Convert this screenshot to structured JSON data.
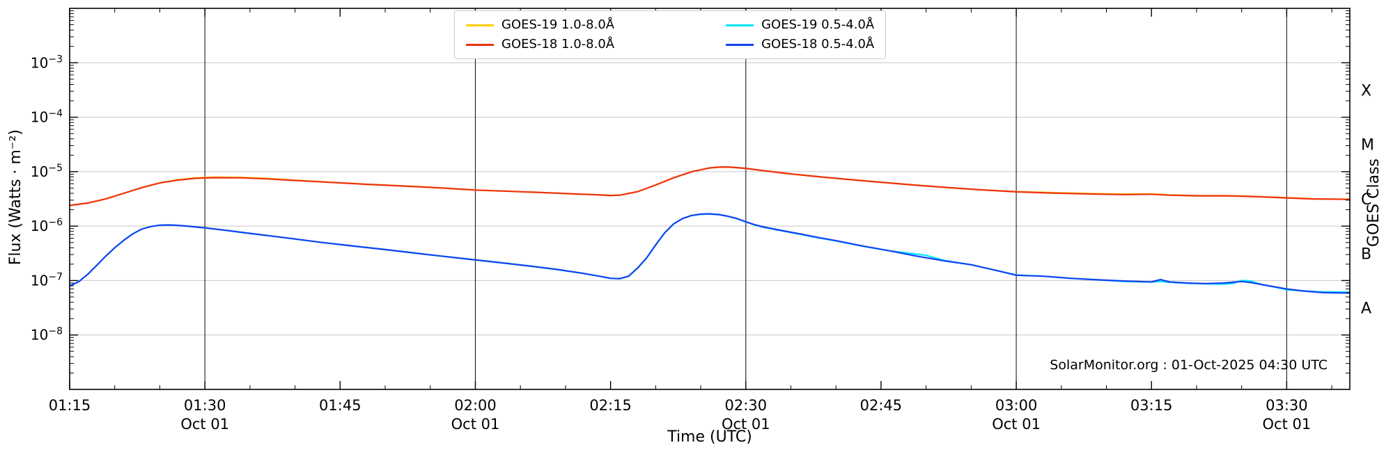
{
  "figure": {
    "background": "#ffffff"
  },
  "annotation": {
    "text": "SolarMonitor.org : 01-Oct-2025 04:30 UTC"
  },
  "axes_titles": {
    "x": "Time (UTC)",
    "y_left": "Flux (Watts · m⁻²)",
    "y_right": "GOES Class"
  },
  "chart_data": {
    "type": "line",
    "title": "",
    "xlabel": "Time (UTC)",
    "ylabel": "Flux (Watts · m⁻²)",
    "ylabel_right": "GOES Class",
    "x_unit": "minutes after 00:00 UTC on 01-Oct-2025",
    "xlim_minutes": [
      75,
      217
    ],
    "ylim": [
      1e-09,
      0.01
    ],
    "grid_color": "#c6c6c6",
    "vline_color": "#1c1c1c",
    "frame_color": "#000000",
    "x_ticks": [
      {
        "t": 75,
        "label": "01:15",
        "date": ""
      },
      {
        "t": 90,
        "label": "01:30",
        "date": "Oct 01"
      },
      {
        "t": 105,
        "label": "01:45",
        "date": ""
      },
      {
        "t": 120,
        "label": "02:00",
        "date": "Oct 01"
      },
      {
        "t": 135,
        "label": "02:15",
        "date": ""
      },
      {
        "t": 150,
        "label": "02:30",
        "date": "Oct 01"
      },
      {
        "t": 165,
        "label": "02:45",
        "date": ""
      },
      {
        "t": 180,
        "label": "03:00",
        "date": "Oct 01"
      },
      {
        "t": 195,
        "label": "03:15",
        "date": ""
      },
      {
        "t": 210,
        "label": "03:30",
        "date": "Oct 01"
      }
    ],
    "x_minor_step_minutes": 5,
    "x_dark_gridline_minutes": [
      90,
      120,
      150,
      180,
      210
    ],
    "y_ticks_exponents": [
      -3,
      -4,
      -5,
      -6,
      -7,
      -8
    ],
    "goes_class_labels": [
      {
        "label": "X",
        "mid_exponent": -3.5
      },
      {
        "label": "M",
        "mid_exponent": -4.5
      },
      {
        "label": "C",
        "mid_exponent": -5.5
      },
      {
        "label": "B",
        "mid_exponent": -6.5
      },
      {
        "label": "A",
        "mid_exponent": -7.5
      }
    ],
    "series": [
      {
        "name": "GOES-19 1.0-8.0Å",
        "color": "#ffce00",
        "points": [
          [
            75,
            2.4e-06
          ],
          [
            77,
            2.65e-06
          ],
          [
            79,
            3.15e-06
          ],
          [
            81,
            4e-06
          ],
          [
            83,
            5.1e-06
          ],
          [
            85,
            6.2e-06
          ],
          [
            87,
            7.1e-06
          ],
          [
            89,
            7.7e-06
          ],
          [
            91,
            7.9e-06
          ],
          [
            94,
            7.85e-06
          ],
          [
            97,
            7.5e-06
          ],
          [
            100,
            6.95e-06
          ],
          [
            104,
            6.38e-06
          ],
          [
            108,
            5.87e-06
          ],
          [
            112,
            5.46e-06
          ],
          [
            116,
            5.06e-06
          ],
          [
            120,
            4.6e-06
          ],
          [
            124,
            4.35e-06
          ],
          [
            128,
            4.1e-06
          ],
          [
            131,
            3.9e-06
          ],
          [
            133,
            3.8e-06
          ],
          [
            135,
            3.65e-06
          ],
          [
            136,
            3.7e-06
          ],
          [
            138,
            4.3e-06
          ],
          [
            140,
            5.7e-06
          ],
          [
            142,
            7.7e-06
          ],
          [
            144,
            1e-05
          ],
          [
            146,
            1.17e-05
          ],
          [
            147,
            1.21e-05
          ],
          [
            148,
            1.22e-05
          ],
          [
            150,
            1.15e-05
          ],
          [
            152,
            1.04e-05
          ],
          [
            155,
            9.1e-06
          ],
          [
            158,
            8.1e-06
          ],
          [
            161,
            7.3e-06
          ],
          [
            164,
            6.6e-06
          ],
          [
            168,
            5.8e-06
          ],
          [
            172,
            5.15e-06
          ],
          [
            176,
            4.65e-06
          ],
          [
            180,
            4.3e-06
          ],
          [
            184,
            4.12e-06
          ],
          [
            188,
            3.97e-06
          ],
          [
            192,
            3.87e-06
          ],
          [
            195,
            3.9e-06
          ],
          [
            197,
            3.75e-06
          ],
          [
            200,
            3.62e-06
          ],
          [
            203,
            3.62e-06
          ],
          [
            205,
            3.57e-06
          ],
          [
            207,
            3.47e-06
          ],
          [
            210,
            3.32e-06
          ],
          [
            213,
            3.17e-06
          ],
          [
            217,
            3.12e-06
          ]
        ]
      },
      {
        "name": "GOES-18 1.0-8.0Å",
        "color": "#ee3211",
        "points": [
          [
            75,
            2.4e-06
          ],
          [
            77,
            2.65e-06
          ],
          [
            79,
            3.15e-06
          ],
          [
            81,
            4e-06
          ],
          [
            83,
            5.1e-06
          ],
          [
            85,
            6.2e-06
          ],
          [
            87,
            7e-06
          ],
          [
            89,
            7.55e-06
          ],
          [
            91,
            7.75e-06
          ],
          [
            94,
            7.7e-06
          ],
          [
            97,
            7.35e-06
          ],
          [
            100,
            6.9e-06
          ],
          [
            104,
            6.35e-06
          ],
          [
            108,
            5.85e-06
          ],
          [
            112,
            5.45e-06
          ],
          [
            116,
            5.05e-06
          ],
          [
            120,
            4.6e-06
          ],
          [
            124,
            4.35e-06
          ],
          [
            128,
            4.1e-06
          ],
          [
            131,
            3.9e-06
          ],
          [
            133,
            3.8e-06
          ],
          [
            135,
            3.65e-06
          ],
          [
            136,
            3.7e-06
          ],
          [
            138,
            4.3e-06
          ],
          [
            140,
            5.7e-06
          ],
          [
            142,
            7.7e-06
          ],
          [
            144,
            1e-05
          ],
          [
            146,
            1.17e-05
          ],
          [
            147,
            1.21e-05
          ],
          [
            148,
            1.22e-05
          ],
          [
            150,
            1.15e-05
          ],
          [
            152,
            1.04e-05
          ],
          [
            155,
            9.1e-06
          ],
          [
            158,
            8.1e-06
          ],
          [
            161,
            7.3e-06
          ],
          [
            164,
            6.6e-06
          ],
          [
            168,
            5.8e-06
          ],
          [
            172,
            5.15e-06
          ],
          [
            176,
            4.65e-06
          ],
          [
            180,
            4.25e-06
          ],
          [
            184,
            4.05e-06
          ],
          [
            188,
            3.9e-06
          ],
          [
            192,
            3.8e-06
          ],
          [
            195,
            3.85e-06
          ],
          [
            197,
            3.7e-06
          ],
          [
            200,
            3.6e-06
          ],
          [
            203,
            3.6e-06
          ],
          [
            205,
            3.55e-06
          ],
          [
            207,
            3.45e-06
          ],
          [
            210,
            3.3e-06
          ],
          [
            213,
            3.15e-06
          ],
          [
            217,
            3.1e-06
          ]
        ]
      },
      {
        "name": "GOES-19 0.5-4.0Å",
        "color": "#00e5ff",
        "points": [
          [
            75,
            8e-08
          ],
          [
            76,
            9.5e-08
          ],
          [
            77,
            1.3e-07
          ],
          [
            78,
            1.9e-07
          ],
          [
            79,
            2.8e-07
          ],
          [
            80,
            4e-07
          ],
          [
            81,
            5.5e-07
          ],
          [
            82,
            7.2e-07
          ],
          [
            83,
            8.8e-07
          ],
          [
            84,
            9.8e-07
          ],
          [
            85,
            1.04e-06
          ],
          [
            86,
            1.05e-06
          ],
          [
            87,
            1.03e-06
          ],
          [
            88,
            1e-06
          ],
          [
            90,
            9.3e-07
          ],
          [
            92,
            8.5e-07
          ],
          [
            94,
            7.7e-07
          ],
          [
            97,
            6.7e-07
          ],
          [
            100,
            5.8e-07
          ],
          [
            103,
            5e-07
          ],
          [
            106,
            4.4e-07
          ],
          [
            110,
            3.7e-07
          ],
          [
            114,
            3.1e-07
          ],
          [
            118,
            2.6e-07
          ],
          [
            122,
            2.2e-07
          ],
          [
            126,
            1.85e-07
          ],
          [
            129,
            1.6e-07
          ],
          [
            132,
            1.35e-07
          ],
          [
            134,
            1.18e-07
          ],
          [
            135,
            1.1e-07
          ],
          [
            136,
            1.08e-07
          ],
          [
            137,
            1.2e-07
          ],
          [
            138,
            1.7e-07
          ],
          [
            139,
            2.6e-07
          ],
          [
            140,
            4.5e-07
          ],
          [
            141,
            7.5e-07
          ],
          [
            142,
            1.1e-06
          ],
          [
            143,
            1.38e-06
          ],
          [
            144,
            1.57e-06
          ],
          [
            145,
            1.65e-06
          ],
          [
            146,
            1.66e-06
          ],
          [
            147,
            1.62e-06
          ],
          [
            148,
            1.51e-06
          ],
          [
            149,
            1.37e-06
          ],
          [
            150,
            1.19e-06
          ],
          [
            151,
            1.05e-06
          ],
          [
            152,
            9.5e-07
          ],
          [
            154,
            8.2e-07
          ],
          [
            156,
            7.1e-07
          ],
          [
            158,
            6.1e-07
          ],
          [
            160,
            5.35e-07
          ],
          [
            163,
            4.25e-07
          ],
          [
            166,
            3.5e-07
          ],
          [
            168,
            3.2e-07
          ],
          [
            169,
            3.05e-07
          ],
          [
            170,
            2.9e-07
          ],
          [
            171,
            2.6e-07
          ],
          [
            172,
            2.35e-07
          ],
          [
            175,
            1.95e-07
          ],
          [
            178,
            1.5e-07
          ],
          [
            180,
            1.27e-07
          ],
          [
            183,
            1.2e-07
          ],
          [
            186,
            1.1e-07
          ],
          [
            189,
            1.03e-07
          ],
          [
            192,
            9.6e-08
          ],
          [
            195,
            9.4e-08
          ],
          [
            196,
            9.6e-08
          ],
          [
            197,
            9.3e-08
          ],
          [
            199,
            8.9e-08
          ],
          [
            201,
            8.7e-08
          ],
          [
            203,
            8.6e-08
          ],
          [
            204,
            8.8e-08
          ],
          [
            205,
            1e-07
          ],
          [
            206,
            9.8e-08
          ],
          [
            207,
            8.6e-08
          ],
          [
            209,
            7.4e-08
          ],
          [
            210,
            6.8e-08
          ],
          [
            212,
            6.4e-08
          ],
          [
            214,
            6.2e-08
          ],
          [
            217,
            6.1e-08
          ]
        ]
      },
      {
        "name": "GOES-18 0.5-4.0Å",
        "color": "#1243f0",
        "points": [
          [
            75,
            8e-08
          ],
          [
            76,
            9.5e-08
          ],
          [
            77,
            1.3e-07
          ],
          [
            78,
            1.9e-07
          ],
          [
            79,
            2.8e-07
          ],
          [
            80,
            4e-07
          ],
          [
            81,
            5.5e-07
          ],
          [
            82,
            7.2e-07
          ],
          [
            83,
            8.8e-07
          ],
          [
            84,
            9.8e-07
          ],
          [
            85,
            1.04e-06
          ],
          [
            86,
            1.05e-06
          ],
          [
            87,
            1.03e-06
          ],
          [
            88,
            1e-06
          ],
          [
            90,
            9.3e-07
          ],
          [
            92,
            8.5e-07
          ],
          [
            94,
            7.7e-07
          ],
          [
            97,
            6.7e-07
          ],
          [
            100,
            5.8e-07
          ],
          [
            103,
            5e-07
          ],
          [
            106,
            4.4e-07
          ],
          [
            110,
            3.7e-07
          ],
          [
            114,
            3.1e-07
          ],
          [
            118,
            2.6e-07
          ],
          [
            122,
            2.2e-07
          ],
          [
            126,
            1.85e-07
          ],
          [
            129,
            1.6e-07
          ],
          [
            132,
            1.35e-07
          ],
          [
            134,
            1.18e-07
          ],
          [
            135,
            1.1e-07
          ],
          [
            136,
            1.08e-07
          ],
          [
            137,
            1.2e-07
          ],
          [
            138,
            1.7e-07
          ],
          [
            139,
            2.6e-07
          ],
          [
            140,
            4.5e-07
          ],
          [
            141,
            7.5e-07
          ],
          [
            142,
            1.1e-06
          ],
          [
            143,
            1.38e-06
          ],
          [
            144,
            1.57e-06
          ],
          [
            145,
            1.66e-06
          ],
          [
            146,
            1.68e-06
          ],
          [
            147,
            1.63e-06
          ],
          [
            148,
            1.52e-06
          ],
          [
            149,
            1.38e-06
          ],
          [
            150,
            1.2e-06
          ],
          [
            151,
            1.06e-06
          ],
          [
            152,
            9.6e-07
          ],
          [
            154,
            8.3e-07
          ],
          [
            156,
            7.2e-07
          ],
          [
            158,
            6.2e-07
          ],
          [
            160,
            5.4e-07
          ],
          [
            163,
            4.3e-07
          ],
          [
            166,
            3.5e-07
          ],
          [
            169,
            2.8e-07
          ],
          [
            172,
            2.3e-07
          ],
          [
            175,
            1.95e-07
          ],
          [
            178,
            1.5e-07
          ],
          [
            180,
            1.25e-07
          ],
          [
            183,
            1.2e-07
          ],
          [
            186,
            1.1e-07
          ],
          [
            189,
            1.03e-07
          ],
          [
            192,
            9.8e-08
          ],
          [
            195,
            9.4e-08
          ],
          [
            196,
            1.04e-07
          ],
          [
            197,
            9.4e-08
          ],
          [
            199,
            9e-08
          ],
          [
            201,
            8.8e-08
          ],
          [
            203,
            9e-08
          ],
          [
            205,
            9.6e-08
          ],
          [
            206,
            9.2e-08
          ],
          [
            208,
            8e-08
          ],
          [
            210,
            7e-08
          ],
          [
            212,
            6.4e-08
          ],
          [
            214,
            6e-08
          ],
          [
            217,
            5.9e-08
          ]
        ]
      }
    ],
    "legend_position": "top-center"
  }
}
